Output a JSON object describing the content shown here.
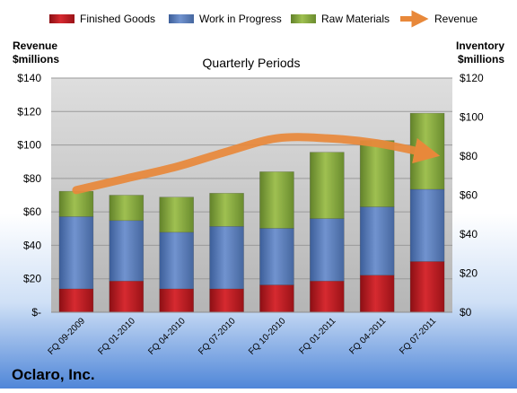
{
  "chart_data": {
    "type": "bar",
    "stacked": true,
    "title": "Quarterly Periods",
    "company": "Oclaro, Inc.",
    "categories": [
      "FQ 09-2009",
      "FQ 01-2010",
      "FQ 04-2010",
      "FQ 07-2010",
      "FQ 10-2010",
      "FQ 01-2011",
      "FQ 04-2011",
      "FQ 07-2011"
    ],
    "series": [
      {
        "name": "Finished Goods",
        "axis": "right",
        "color": "#c0181f",
        "values": [
          12,
          16,
          12,
          12,
          14,
          16,
          19,
          26
        ]
      },
      {
        "name": "Work in Progress",
        "axis": "right",
        "color": "#5679b9",
        "values": [
          37,
          31,
          29,
          32,
          29,
          32,
          35,
          37
        ]
      },
      {
        "name": "Raw Materials",
        "axis": "right",
        "color": "#8aac3c",
        "values": [
          13,
          13,
          18,
          17,
          29,
          34,
          34,
          39
        ]
      },
      {
        "name": "Revenue",
        "axis": "left",
        "type": "line",
        "color": "#e8883a",
        "values": [
          73,
          80,
          87,
          96,
          104,
          104,
          101,
          95
        ]
      }
    ],
    "left_axis": {
      "label_line1": "Revenue",
      "label_line2": "$millions",
      "range": [
        0,
        140
      ],
      "ticks": [
        "$-",
        "$20",
        "$40",
        "$60",
        "$80",
        "$100",
        "$120",
        "$140"
      ]
    },
    "right_axis": {
      "label_line1": "Inventory",
      "label_line2": "$millions",
      "range": [
        0,
        120
      ],
      "ticks": [
        "$0",
        "$20",
        "$40",
        "$60",
        "$80",
        "$100",
        "$120"
      ]
    },
    "grid": true,
    "legend_position": "top"
  }
}
